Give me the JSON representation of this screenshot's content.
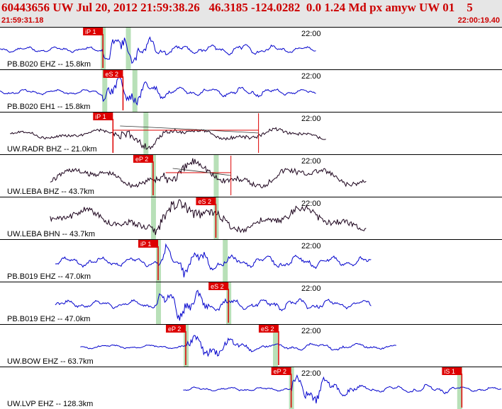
{
  "header": {
    "title": "60443656 UW Jul 20, 2012 21:59:38.26   46.3185 -124.0282  0.0 1.24 Md px amyw UW 01    5",
    "time_start": "21:59:31.18",
    "time_end": "22:00:19.40"
  },
  "colors": {
    "trace_blue": "#0000cc",
    "trace_dark": "#1a001a",
    "pick_red": "#dd0000",
    "window_green": "#b8e0b8",
    "header_text": "#cc0000",
    "header_bg": "#e6e6e6"
  },
  "minute_label": "22:00",
  "traces": [
    {
      "label": "PB.B020 EHZ -- 15.8km",
      "color": "blue",
      "start": 0,
      "end": 0.63,
      "onset": 0.205,
      "amp": 30,
      "base": 4,
      "freq": 1.6,
      "seed": 11,
      "picks": [
        {
          "text": "iP 1",
          "pos": 0.205
        }
      ],
      "windows": [
        0.205,
        0.255
      ]
    },
    {
      "label": "PB.B020 EH1 -- 15.8km",
      "color": "blue",
      "start": 0,
      "end": 0.63,
      "onset": 0.205,
      "amp": 28,
      "base": 4,
      "freq": 1.6,
      "seed": 23,
      "picks": [
        {
          "text": "eS 2",
          "pos": 0.245
        }
      ],
      "windows": [
        0.208,
        0.268
      ]
    },
    {
      "label": "UW.RADR BHZ -- 21.0km",
      "color": "dark",
      "start": 0.02,
      "end": 0.65,
      "onset": 0.225,
      "amp": 24,
      "base": 7,
      "freq": 0.55,
      "seed": 37,
      "picks": [
        {
          "text": "iP 1",
          "pos": 0.225
        }
      ],
      "windows": [
        0.29
      ],
      "redbox": [
        0.225,
        0.515
      ]
    },
    {
      "label": "UW.LEBA BHZ -- 43.7km",
      "color": "dark",
      "start": 0.1,
      "end": 0.73,
      "onset": 0.305,
      "amp": 22,
      "base": 14,
      "freq": 0.45,
      "seed": 41,
      "picks": [
        {
          "text": "eP 2",
          "pos": 0.305
        }
      ],
      "windows": [
        0.305,
        0.43
      ],
      "redbox": [
        0.33,
        0.46
      ]
    },
    {
      "label": "UW.LEBA BHN -- 43.7km",
      "color": "dark",
      "start": 0.1,
      "end": 0.73,
      "onset": 0.305,
      "amp": 24,
      "base": 16,
      "freq": 0.45,
      "seed": 53,
      "picks": [
        {
          "text": "eS 2",
          "pos": 0.43
        }
      ],
      "windows": [
        0.305,
        0.43
      ]
    },
    {
      "label": "PB.B019 EHZ -- 47.0km",
      "color": "blue",
      "start": 0.11,
      "end": 0.74,
      "onset": 0.315,
      "amp": 22,
      "base": 7,
      "freq": 1.5,
      "seed": 67,
      "picks": [
        {
          "text": "iP 1",
          "pos": 0.315
        }
      ],
      "windows": [
        0.315,
        0.448
      ]
    },
    {
      "label": "PB.B019 EH2 -- 47.0km",
      "color": "blue",
      "start": 0.11,
      "end": 0.74,
      "onset": 0.315,
      "amp": 24,
      "base": 6,
      "freq": 1.5,
      "seed": 79,
      "picks": [
        {
          "text": "eS 2",
          "pos": 0.455
        }
      ],
      "windows": [
        0.315,
        0.455
      ]
    },
    {
      "label": "UW.BOW EHZ -- 63.7km",
      "color": "blue",
      "start": 0.16,
      "end": 0.79,
      "onset": 0.37,
      "amp": 22,
      "base": 3,
      "freq": 1.2,
      "seed": 83,
      "picks": [
        {
          "text": "eP 2",
          "pos": 0.37
        },
        {
          "text": "eS 2",
          "pos": 0.555
        }
      ],
      "windows": [
        0.37,
        0.548
      ]
    },
    {
      "label": "UW.LVP EHZ -- 128.3km",
      "color": "blue",
      "start": 0.365,
      "end": 1.0,
      "onset": 0.58,
      "amp": 26,
      "base": 3,
      "freq": 1.5,
      "seed": 97,
      "picks": [
        {
          "text": "eP 2",
          "pos": 0.58
        },
        {
          "text": "iS 1",
          "pos": 0.92
        }
      ],
      "windows": [
        0.58,
        0.915
      ]
    }
  ]
}
